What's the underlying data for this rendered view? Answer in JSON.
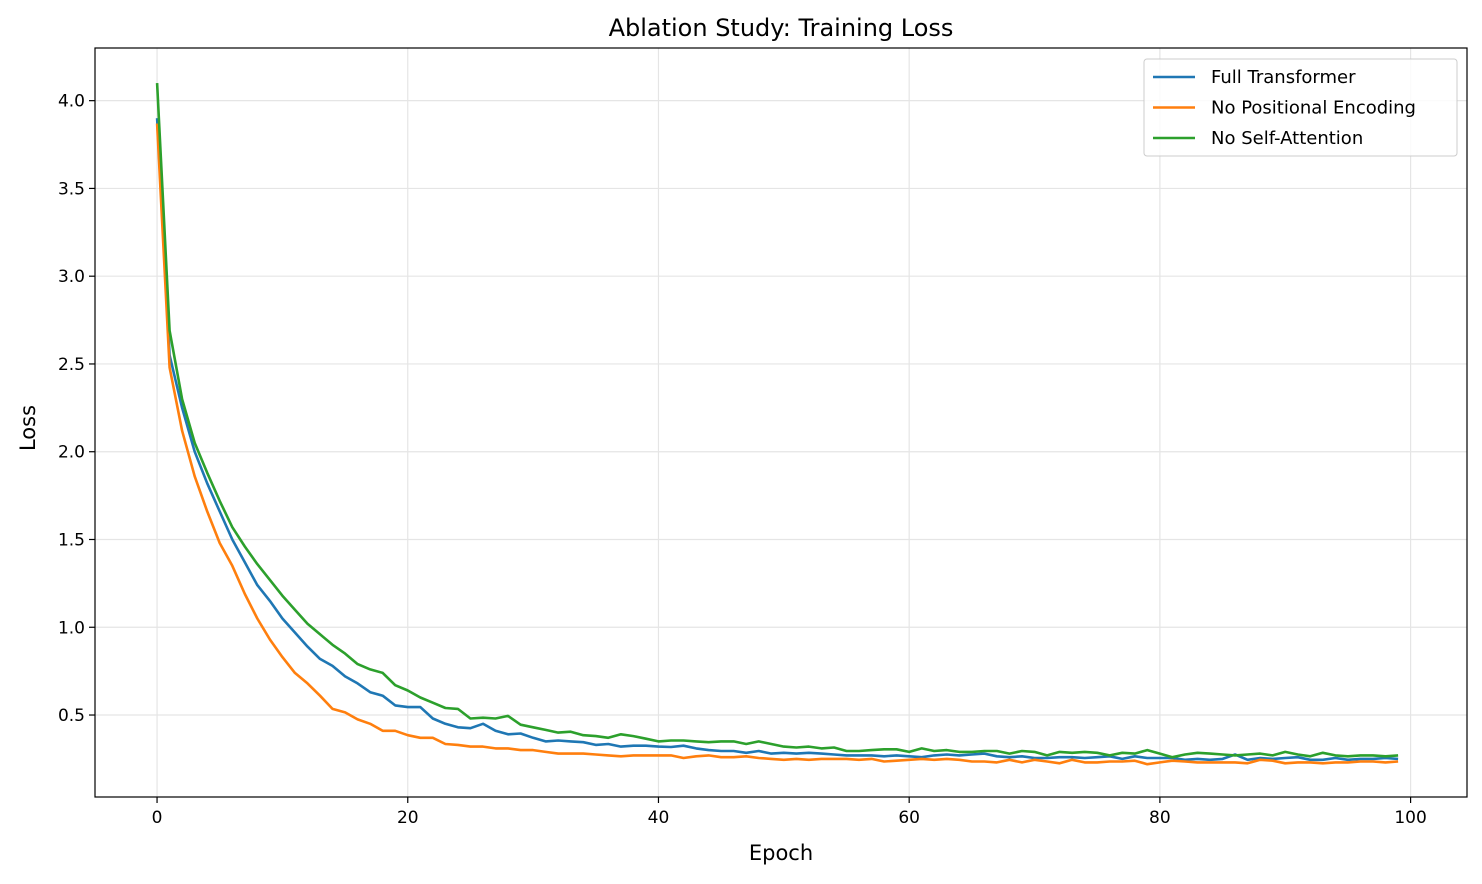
{
  "chart_data": {
    "type": "line",
    "title": "Ablation Study: Training Loss",
    "xlabel": "Epoch",
    "ylabel": "Loss",
    "xlim": [
      -4.95,
      104.5
    ],
    "ylim": [
      0.033,
      4.3
    ],
    "xticks": [
      0,
      20,
      40,
      60,
      80,
      100
    ],
    "yticks": [
      0.5,
      1.0,
      1.5,
      2.0,
      2.5,
      3.0,
      3.5,
      4.0
    ],
    "xtick_labels": [
      "0",
      "20",
      "40",
      "60",
      "80",
      "100"
    ],
    "ytick_labels": [
      "0.5",
      "1.0",
      "1.5",
      "2.0",
      "2.5",
      "3.0",
      "3.5",
      "4.0"
    ],
    "grid": true,
    "legend_position": "top-right",
    "x_start": 0,
    "series": [
      {
        "name": "Full Transformer",
        "color": "#1f77b4",
        "values": [
          3.9,
          2.55,
          2.25,
          2.0,
          1.82,
          1.66,
          1.5,
          1.37,
          1.24,
          1.15,
          1.05,
          0.97,
          0.89,
          0.82,
          0.78,
          0.72,
          0.68,
          0.63,
          0.61,
          0.555,
          0.545,
          0.545,
          0.48,
          0.45,
          0.43,
          0.425,
          0.45,
          0.41,
          0.39,
          0.395,
          0.37,
          0.35,
          0.355,
          0.35,
          0.345,
          0.33,
          0.335,
          0.32,
          0.325,
          0.325,
          0.32,
          0.318,
          0.325,
          0.31,
          0.3,
          0.295,
          0.295,
          0.285,
          0.295,
          0.28,
          0.285,
          0.28,
          0.285,
          0.28,
          0.275,
          0.27,
          0.27,
          0.27,
          0.265,
          0.27,
          0.265,
          0.26,
          0.27,
          0.275,
          0.27,
          0.275,
          0.28,
          0.265,
          0.26,
          0.265,
          0.255,
          0.255,
          0.26,
          0.26,
          0.255,
          0.26,
          0.265,
          0.25,
          0.265,
          0.255,
          0.255,
          0.255,
          0.245,
          0.25,
          0.245,
          0.25,
          0.275,
          0.245,
          0.255,
          0.25,
          0.255,
          0.26,
          0.245,
          0.245,
          0.255,
          0.245,
          0.25,
          0.25,
          0.255,
          0.25
        ]
      },
      {
        "name": "No Positional Encoding",
        "color": "#ff7f0e",
        "values": [
          3.87,
          2.48,
          2.12,
          1.86,
          1.66,
          1.48,
          1.35,
          1.19,
          1.05,
          0.93,
          0.83,
          0.74,
          0.68,
          0.61,
          0.535,
          0.515,
          0.475,
          0.45,
          0.41,
          0.41,
          0.385,
          0.37,
          0.37,
          0.335,
          0.33,
          0.32,
          0.32,
          0.31,
          0.31,
          0.3,
          0.3,
          0.29,
          0.28,
          0.28,
          0.28,
          0.275,
          0.27,
          0.265,
          0.27,
          0.27,
          0.27,
          0.27,
          0.255,
          0.265,
          0.27,
          0.26,
          0.26,
          0.265,
          0.255,
          0.25,
          0.245,
          0.25,
          0.245,
          0.25,
          0.25,
          0.25,
          0.245,
          0.25,
          0.235,
          0.24,
          0.245,
          0.25,
          0.245,
          0.25,
          0.245,
          0.235,
          0.235,
          0.23,
          0.245,
          0.23,
          0.245,
          0.235,
          0.225,
          0.245,
          0.23,
          0.23,
          0.235,
          0.235,
          0.24,
          0.22,
          0.23,
          0.24,
          0.235,
          0.23,
          0.23,
          0.23,
          0.23,
          0.225,
          0.245,
          0.24,
          0.225,
          0.23,
          0.23,
          0.225,
          0.23,
          0.23,
          0.235,
          0.235,
          0.23,
          0.235
        ]
      },
      {
        "name": "No Self-Attention",
        "color": "#2ca02c",
        "values": [
          4.1,
          2.69,
          2.3,
          2.05,
          1.88,
          1.72,
          1.57,
          1.46,
          1.36,
          1.27,
          1.18,
          1.1,
          1.02,
          0.96,
          0.9,
          0.85,
          0.79,
          0.76,
          0.74,
          0.67,
          0.64,
          0.6,
          0.57,
          0.54,
          0.535,
          0.48,
          0.485,
          0.48,
          0.495,
          0.445,
          0.43,
          0.415,
          0.4,
          0.405,
          0.385,
          0.38,
          0.37,
          0.39,
          0.38,
          0.365,
          0.35,
          0.355,
          0.355,
          0.35,
          0.345,
          0.35,
          0.35,
          0.335,
          0.35,
          0.335,
          0.32,
          0.315,
          0.32,
          0.31,
          0.315,
          0.295,
          0.295,
          0.3,
          0.305,
          0.305,
          0.29,
          0.31,
          0.295,
          0.3,
          0.29,
          0.29,
          0.295,
          0.295,
          0.28,
          0.295,
          0.29,
          0.27,
          0.29,
          0.285,
          0.29,
          0.285,
          0.27,
          0.285,
          0.28,
          0.3,
          0.28,
          0.26,
          0.275,
          0.285,
          0.28,
          0.275,
          0.27,
          0.275,
          0.28,
          0.27,
          0.29,
          0.275,
          0.265,
          0.285,
          0.27,
          0.265,
          0.27,
          0.27,
          0.265,
          0.27
        ]
      }
    ]
  }
}
